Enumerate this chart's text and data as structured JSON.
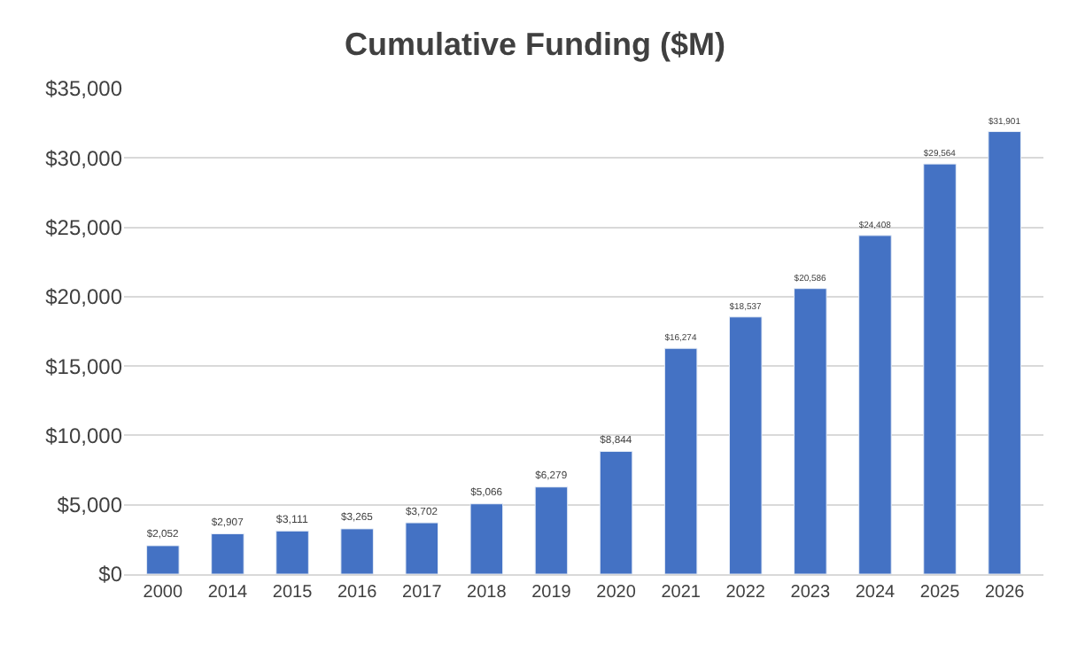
{
  "chart_data": {
    "type": "bar",
    "title": "Cumulative Funding ($M)",
    "categories": [
      "2000",
      "2014",
      "2015",
      "2016",
      "2017",
      "2018",
      "2019",
      "2020",
      "2021",
      "2022",
      "2023",
      "2024",
      "2025",
      "2026"
    ],
    "values": [
      2052,
      2907,
      3111,
      3265,
      3702,
      5066,
      6279,
      8844,
      16274,
      18537,
      20586,
      24408,
      29564,
      31901
    ],
    "value_labels": [
      "$2,052",
      "$2,907",
      "$3,111",
      "$3,265",
      "$3,702",
      "$5,066",
      "$6,279",
      "$8,844",
      "$16,274",
      "$18,537",
      "$20,586",
      "$24,408",
      "$29,564",
      "$31,901"
    ],
    "color": "#4472c4",
    "ylim": [
      0,
      35000
    ],
    "yticks": [
      {
        "value": 0,
        "label": "$0"
      },
      {
        "value": 5000,
        "label": "$5,000"
      },
      {
        "value": 10000,
        "label": "$10,000"
      },
      {
        "value": 15000,
        "label": "$15,000"
      },
      {
        "value": 20000,
        "label": "$20,000"
      },
      {
        "value": 25000,
        "label": "$25,000"
      },
      {
        "value": 30000,
        "label": "$30,000"
      },
      {
        "value": 35000,
        "label": "$35,000"
      }
    ],
    "grid": "y",
    "legend": false
  }
}
